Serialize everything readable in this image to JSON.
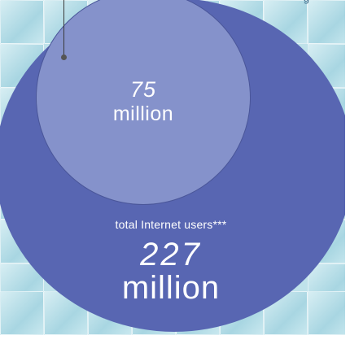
{
  "top_label": "g",
  "small_circle": {
    "value": "75",
    "unit": "million"
  },
  "big_circle": {
    "label": "total Internet users***",
    "value": "227",
    "unit": "million"
  },
  "colors": {
    "big_circle": "#5866b2",
    "small_circle": "#8592cb",
    "background_tiles": "#bfe2ea",
    "text": "#ffffff"
  }
}
